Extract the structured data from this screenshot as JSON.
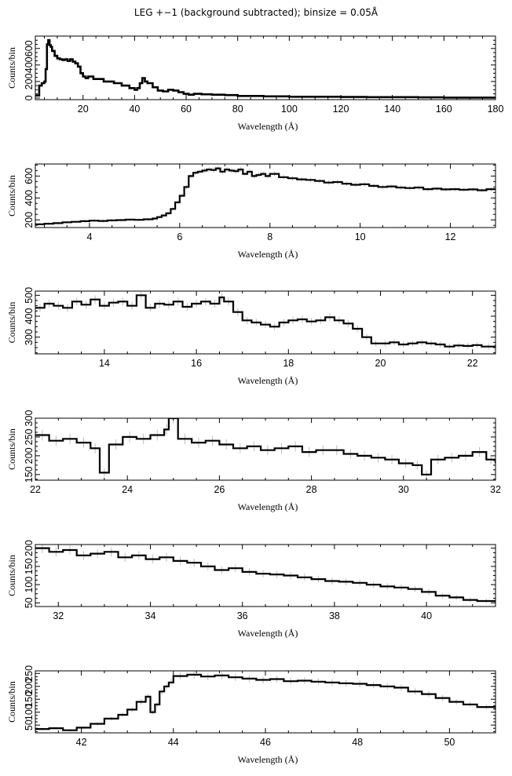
{
  "page": {
    "title": "LEG +−1 (background subtracted); binsize = 0.05Å"
  },
  "colors": {
    "axes": "#000000",
    "line": "#000000",
    "error_bar": "#bdbdbd",
    "background": "#ffffff"
  },
  "chart_data": [
    {
      "type": "line",
      "step": true,
      "panel": 1,
      "xlabel": "Wavelength (Å)",
      "ylabel": "Counts/bin",
      "xlim": [
        1.5,
        180
      ],
      "ylim": [
        -20,
        750
      ],
      "xticks": [
        20,
        40,
        60,
        80,
        100,
        120,
        140,
        160,
        180
      ],
      "yticks": [
        0,
        200,
        400,
        600
      ],
      "x": [
        1.5,
        3,
        4,
        5,
        5.5,
        6,
        6.5,
        7,
        7.5,
        8,
        9,
        10,
        11,
        12,
        13,
        14,
        15,
        16,
        17,
        18,
        19,
        20,
        21,
        22,
        24,
        26,
        28,
        30,
        32,
        35,
        38,
        40,
        41,
        42,
        43,
        44,
        45,
        47,
        49,
        51,
        53,
        55,
        57,
        59,
        61,
        63,
        66,
        70,
        75,
        80,
        90,
        100,
        110,
        120,
        130,
        140,
        150,
        160,
        170,
        180
      ],
      "values": [
        30,
        150,
        180,
        200,
        350,
        650,
        700,
        640,
        620,
        570,
        510,
        480,
        470,
        460,
        470,
        450,
        470,
        440,
        420,
        380,
        300,
        260,
        240,
        260,
        230,
        230,
        200,
        200,
        180,
        150,
        120,
        100,
        120,
        180,
        240,
        200,
        180,
        130,
        90,
        80,
        100,
        90,
        70,
        50,
        40,
        50,
        45,
        40,
        35,
        25,
        20,
        15,
        15,
        12,
        10,
        10,
        8,
        5,
        5,
        3
      ]
    },
    {
      "type": "line",
      "step": true,
      "panel": 2,
      "xlabel": "Wavelength (Å)",
      "ylabel": "Counts/bin",
      "xlim": [
        2.8,
        13
      ],
      "ylim": [
        130,
        710
      ],
      "xticks": [
        4,
        6,
        8,
        10,
        12
      ],
      "yticks": [
        200,
        400,
        600
      ],
      "x": [
        2.8,
        3,
        3.2,
        3.4,
        3.6,
        3.8,
        4,
        4.2,
        4.4,
        4.6,
        4.8,
        5,
        5.2,
        5.4,
        5.5,
        5.6,
        5.7,
        5.8,
        5.9,
        6,
        6.1,
        6.2,
        6.3,
        6.4,
        6.5,
        6.6,
        6.7,
        6.8,
        6.9,
        7,
        7.1,
        7.2,
        7.3,
        7.4,
        7.5,
        7.6,
        7.7,
        7.8,
        7.9,
        8,
        8.2,
        8.4,
        8.6,
        8.8,
        9,
        9.2,
        9.4,
        9.6,
        9.8,
        10,
        10.2,
        10.4,
        10.6,
        10.8,
        11,
        11.2,
        11.4,
        11.6,
        11.8,
        12,
        12.2,
        12.4,
        12.6,
        12.8,
        13
      ],
      "values": [
        160,
        165,
        170,
        178,
        182,
        188,
        193,
        190,
        195,
        198,
        202,
        200,
        205,
        212,
        225,
        240,
        260,
        300,
        360,
        420,
        500,
        600,
        630,
        640,
        650,
        660,
        655,
        670,
        640,
        660,
        650,
        645,
        660,
        620,
        640,
        600,
        610,
        620,
        600,
        620,
        590,
        580,
        570,
        565,
        555,
        540,
        545,
        530,
        520,
        525,
        510,
        500,
        505,
        495,
        490,
        495,
        480,
        485,
        478,
        480,
        475,
        478,
        470,
        480,
        475
      ]
    },
    {
      "type": "line",
      "step": true,
      "panel": 3,
      "xlabel": "Wavelength (Å)",
      "ylabel": "Counts/bin",
      "xlim": [
        12.5,
        22.5
      ],
      "ylim": [
        220,
        520
      ],
      "xticks": [
        14,
        16,
        18,
        20,
        22
      ],
      "yticks": [
        300,
        400,
        500
      ],
      "x": [
        12.5,
        12.7,
        12.9,
        13.1,
        13.3,
        13.5,
        13.7,
        13.9,
        14.1,
        14.3,
        14.5,
        14.7,
        14.9,
        15.1,
        15.3,
        15.5,
        15.7,
        15.9,
        16.1,
        16.3,
        16.5,
        16.6,
        16.8,
        17,
        17.2,
        17.4,
        17.6,
        17.8,
        18,
        18.2,
        18.4,
        18.6,
        18.8,
        19,
        19.2,
        19.4,
        19.6,
        19.8,
        20,
        20.2,
        20.4,
        20.6,
        20.8,
        21,
        21.2,
        21.4,
        21.6,
        21.8,
        22,
        22.2,
        22.5
      ],
      "values": [
        440,
        460,
        450,
        440,
        470,
        455,
        480,
        450,
        465,
        470,
        450,
        500,
        440,
        460,
        455,
        470,
        445,
        460,
        470,
        460,
        490,
        470,
        420,
        380,
        370,
        360,
        350,
        370,
        380,
        385,
        375,
        380,
        395,
        380,
        365,
        340,
        300,
        270,
        270,
        275,
        265,
        270,
        275,
        270,
        265,
        255,
        260,
        258,
        262,
        255,
        262
      ]
    },
    {
      "type": "line",
      "step": true,
      "panel": 4,
      "xlabel": "Wavelength (Å)",
      "ylabel": "Counts/bin",
      "xlim": [
        22,
        32
      ],
      "ylim": [
        135,
        300
      ],
      "xticks": [
        22,
        24,
        26,
        28,
        30,
        32
      ],
      "yticks": [
        150,
        200,
        250,
        300
      ],
      "x": [
        22,
        22.3,
        22.6,
        22.9,
        23.2,
        23.4,
        23.6,
        23.9,
        24.2,
        24.5,
        24.8,
        24.9,
        25.1,
        25.4,
        25.7,
        26,
        26.3,
        26.6,
        26.9,
        27.2,
        27.5,
        27.8,
        28.1,
        28.4,
        28.7,
        29,
        29.3,
        29.6,
        29.9,
        30.2,
        30.4,
        30.6,
        30.9,
        31.2,
        31.5,
        31.8,
        32
      ],
      "values": [
        255,
        240,
        245,
        235,
        220,
        155,
        230,
        250,
        245,
        255,
        270,
        300,
        245,
        235,
        240,
        230,
        220,
        225,
        215,
        220,
        225,
        210,
        215,
        215,
        205,
        200,
        195,
        190,
        180,
        175,
        150,
        190,
        195,
        200,
        210,
        190,
        180
      ]
    },
    {
      "type": "line",
      "step": true,
      "panel": 5,
      "xlabel": "Wavelength (Å)",
      "ylabel": "Counts/bin",
      "xlim": [
        31.5,
        41.5
      ],
      "ylim": [
        40,
        210
      ],
      "xticks": [
        32,
        34,
        36,
        38,
        40
      ],
      "yticks": [
        50,
        100,
        150,
        200
      ],
      "x": [
        31.5,
        31.8,
        32.1,
        32.4,
        32.7,
        33,
        33.3,
        33.6,
        33.9,
        34.2,
        34.5,
        34.8,
        35.1,
        35.4,
        35.7,
        36,
        36.3,
        36.6,
        36.9,
        37.2,
        37.5,
        37.8,
        38.1,
        38.4,
        38.7,
        39,
        39.3,
        39.6,
        39.9,
        40.2,
        40.5,
        40.8,
        41.1,
        41.5
      ],
      "values": [
        200,
        190,
        195,
        180,
        185,
        190,
        175,
        180,
        170,
        175,
        165,
        160,
        150,
        140,
        145,
        135,
        130,
        128,
        125,
        120,
        115,
        110,
        108,
        105,
        100,
        95,
        92,
        88,
        80,
        70,
        65,
        58,
        55,
        52
      ]
    },
    {
      "type": "line",
      "step": true,
      "panel": 6,
      "xlabel": "Wavelength (Å)",
      "ylabel": "Counts/bin",
      "xlim": [
        41,
        51
      ],
      "ylim": [
        20,
        260
      ],
      "xticks": [
        42,
        44,
        46,
        48,
        50
      ],
      "yticks": [
        50,
        100,
        150,
        200,
        250
      ],
      "x": [
        41,
        41.3,
        41.6,
        41.9,
        42.2,
        42.5,
        42.8,
        43,
        43.2,
        43.4,
        43.5,
        43.6,
        43.7,
        43.8,
        43.9,
        44,
        44.3,
        44.6,
        44.9,
        45.2,
        45.5,
        45.8,
        46.1,
        46.4,
        46.7,
        47,
        47.3,
        47.6,
        47.9,
        48.2,
        48.5,
        48.8,
        49.1,
        49.4,
        49.7,
        50,
        50.3,
        50.6,
        51
      ],
      "values": [
        35,
        38,
        30,
        40,
        55,
        75,
        90,
        110,
        140,
        160,
        100,
        130,
        180,
        200,
        215,
        240,
        245,
        238,
        242,
        235,
        230,
        225,
        228,
        220,
        222,
        218,
        215,
        212,
        210,
        205,
        200,
        195,
        180,
        170,
        155,
        140,
        130,
        120,
        110
      ]
    }
  ]
}
